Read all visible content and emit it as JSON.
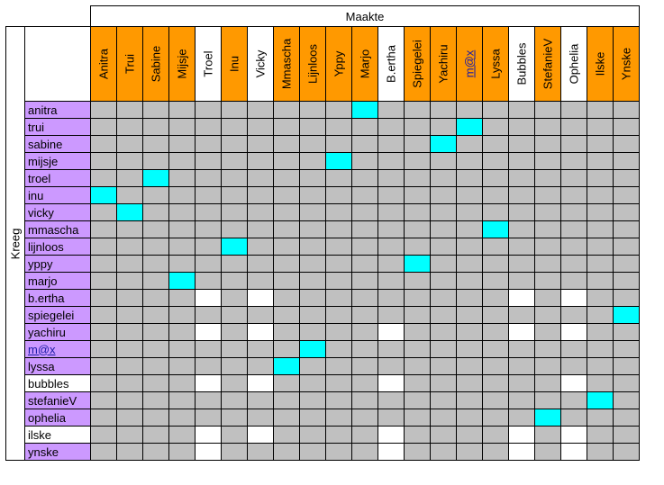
{
  "header": {
    "top_title": "Maakte",
    "side_title": "Kreeg"
  },
  "colors": {
    "orange": "#ff9900",
    "purple": "#cc99ff",
    "white": "#ffffff",
    "gray": "#c0c0c0",
    "cyan": "#00ffff",
    "link": "#1a1aa6"
  },
  "columns": [
    {
      "label": "Anitra",
      "color": "orange"
    },
    {
      "label": "Trui",
      "color": "orange"
    },
    {
      "label": "Sabine",
      "color": "orange"
    },
    {
      "label": "Mijsje",
      "color": "orange"
    },
    {
      "label": "Troel",
      "color": "white"
    },
    {
      "label": "Inu",
      "color": "orange"
    },
    {
      "label": "Vicky",
      "color": "white"
    },
    {
      "label": "Mmascha",
      "color": "orange"
    },
    {
      "label": "Lijnloos",
      "color": "orange"
    },
    {
      "label": "Yppy",
      "color": "orange"
    },
    {
      "label": "Marjo",
      "color": "orange"
    },
    {
      "label": "B.ertha",
      "color": "white"
    },
    {
      "label": "Spiegelei",
      "color": "orange"
    },
    {
      "label": "Yachiru",
      "color": "orange"
    },
    {
      "label": "m@x",
      "color": "orange",
      "link": true
    },
    {
      "label": "Lyssa",
      "color": "orange"
    },
    {
      "label": "Bubbles",
      "color": "white"
    },
    {
      "label": "StefanieV",
      "color": "orange"
    },
    {
      "label": "Ophelia",
      "color": "white"
    },
    {
      "label": "Ilske",
      "color": "orange"
    },
    {
      "label": "Ynske",
      "color": "orange"
    }
  ],
  "rows": [
    {
      "label": "anitra",
      "color": "purple"
    },
    {
      "label": "trui",
      "color": "purple"
    },
    {
      "label": "sabine",
      "color": "purple"
    },
    {
      "label": "mijsje",
      "color": "purple"
    },
    {
      "label": "troel",
      "color": "purple"
    },
    {
      "label": "inu",
      "color": "purple"
    },
    {
      "label": "vicky",
      "color": "purple"
    },
    {
      "label": "mmascha",
      "color": "purple"
    },
    {
      "label": "lijnloos",
      "color": "purple"
    },
    {
      "label": "yppy",
      "color": "purple"
    },
    {
      "label": "marjo",
      "color": "purple"
    },
    {
      "label": "b.ertha",
      "color": "purple"
    },
    {
      "label": "spiegelei",
      "color": "purple"
    },
    {
      "label": "yachiru",
      "color": "purple"
    },
    {
      "label": "m@x",
      "color": "purple",
      "link": true
    },
    {
      "label": "lyssa",
      "color": "purple"
    },
    {
      "label": "bubbles",
      "color": "white"
    },
    {
      "label": "stefanieV",
      "color": "purple"
    },
    {
      "label": "ophelia",
      "color": "purple"
    },
    {
      "label": "ilske",
      "color": "white"
    },
    {
      "label": "ynske",
      "color": "purple"
    }
  ],
  "matrix": [
    "GGGGGGGGGGCGGGGGGGGGG",
    "GGGGGGGGGGGGGGCGGGGGG",
    "GGGGGGGGGGGGGCGGGGGGG",
    "GGGGGGGGGCGGGGGGGGGGG",
    "GGCGGGGGGGGGGGGGGGGGG",
    "CGGGGGGGGGGGGGGGGGGGG",
    "GCGGGGGGGGGGGGGGGGGGG",
    "GGGGGGGGGGGGGGGCGGGGG",
    "GGGGGCGGGGGGGGGGGGGGG",
    "GGGGGGGGGGGGCGGGGGGGG",
    "GGGCGGGGGGGGGGGGGGGGG",
    "GGGGWGWGGGGGGGGGWGWGG",
    "GGGGGGGGGGGGGGGGGGGGC",
    "GGGGWGWGGGGWGGGGWGWGG",
    "GGGGGGGGCGGGGGGGGGGGG",
    "GGGGGGGCGGGGGGGGGGGGG",
    "GGGGWGWGGGGWGGGGGGWGG",
    "GGGGGGGGGGGGGGGGGGGCG",
    "GGGGGGGGGGGGGGGGGCGGG",
    "GGGGWGWGGGGWGGGGWGWGG",
    "GGGGWGGGGGGWGGGGWGWGG"
  ]
}
